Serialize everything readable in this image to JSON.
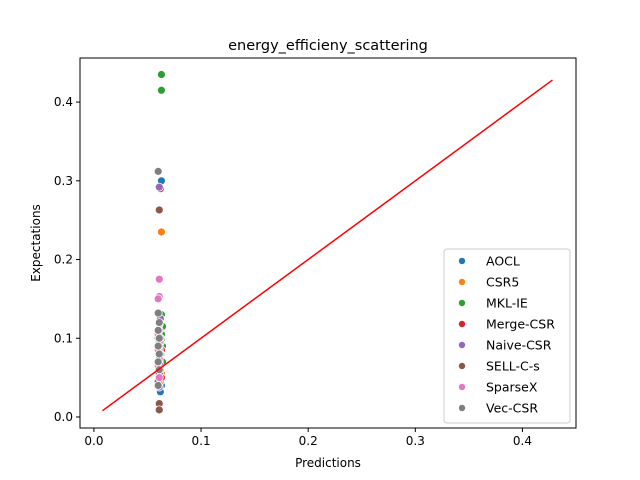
{
  "chart_data": {
    "type": "scatter",
    "title": "energy_efficieny_scattering",
    "xlabel": "Predictions",
    "ylabel": "Expectations",
    "xlim": [
      -0.013,
      0.45
    ],
    "ylim": [
      -0.014,
      0.456
    ],
    "xticks": [
      0.0,
      0.1,
      0.2,
      0.3,
      0.4
    ],
    "yticks": [
      0.0,
      0.1,
      0.2,
      0.3,
      0.4
    ],
    "xtick_labels": [
      "0.0",
      "0.1",
      "0.2",
      "0.3",
      "0.4"
    ],
    "ytick_labels": [
      "0.0",
      "0.1",
      "0.2",
      "0.3",
      "0.4"
    ],
    "grid": false,
    "legend_position": "lower-right",
    "reference_line": {
      "color": "#ff0000",
      "x": [
        0.008,
        0.428
      ],
      "y": [
        0.008,
        0.428
      ]
    },
    "series": [
      {
        "name": "AOCL",
        "color": "#1f77b4",
        "points": [
          [
            0.063,
            0.3
          ],
          [
            0.062,
            0.11
          ],
          [
            0.061,
            0.105
          ],
          [
            0.063,
            0.1
          ],
          [
            0.062,
            0.095
          ],
          [
            0.06,
            0.09
          ],
          [
            0.063,
            0.085
          ],
          [
            0.062,
            0.075
          ],
          [
            0.061,
            0.06
          ],
          [
            0.062,
            0.05
          ],
          [
            0.063,
            0.04
          ],
          [
            0.062,
            0.032
          ]
        ]
      },
      {
        "name": "CSR5",
        "color": "#ff7f0e",
        "points": [
          [
            0.063,
            0.235
          ],
          [
            0.062,
            0.1
          ],
          [
            0.061,
            0.08
          ],
          [
            0.062,
            0.065
          ],
          [
            0.063,
            0.055
          ],
          [
            0.062,
            0.045
          ]
        ]
      },
      {
        "name": "MKL-IE",
        "color": "#2ca02c",
        "points": [
          [
            0.063,
            0.435
          ],
          [
            0.063,
            0.415
          ],
          [
            0.063,
            0.13
          ],
          [
            0.064,
            0.115
          ],
          [
            0.063,
            0.105
          ],
          [
            0.063,
            0.098
          ],
          [
            0.064,
            0.09
          ],
          [
            0.063,
            0.08
          ],
          [
            0.064,
            0.07
          ]
        ]
      },
      {
        "name": "Merge-CSR",
        "color": "#d62728",
        "points": [
          [
            0.062,
            0.29
          ],
          [
            0.061,
            0.12
          ],
          [
            0.062,
            0.095
          ],
          [
            0.063,
            0.085
          ],
          [
            0.062,
            0.08
          ],
          [
            0.061,
            0.07
          ],
          [
            0.062,
            0.06
          ],
          [
            0.063,
            0.05
          ]
        ]
      },
      {
        "name": "Naive-CSR",
        "color": "#9467bd",
        "points": [
          [
            0.061,
            0.292
          ],
          [
            0.062,
            0.125
          ],
          [
            0.061,
            0.11
          ],
          [
            0.062,
            0.1
          ],
          [
            0.061,
            0.09
          ],
          [
            0.062,
            0.08
          ],
          [
            0.061,
            0.072
          ],
          [
            0.062,
            0.065
          ],
          [
            0.061,
            0.038
          ]
        ]
      },
      {
        "name": "SELL-C-s",
        "color": "#8c564b",
        "points": [
          [
            0.061,
            0.263
          ],
          [
            0.06,
            0.1
          ],
          [
            0.061,
            0.085
          ],
          [
            0.06,
            0.07
          ],
          [
            0.061,
            0.055
          ],
          [
            0.06,
            0.045
          ],
          [
            0.061,
            0.017
          ],
          [
            0.061,
            0.009
          ]
        ]
      },
      {
        "name": "SparseX",
        "color": "#e377c2",
        "points": [
          [
            0.061,
            0.175
          ],
          [
            0.061,
            0.153
          ],
          [
            0.06,
            0.15
          ],
          [
            0.061,
            0.118
          ],
          [
            0.06,
            0.105
          ],
          [
            0.061,
            0.095
          ],
          [
            0.06,
            0.085
          ],
          [
            0.061,
            0.075
          ],
          [
            0.06,
            0.065
          ],
          [
            0.061,
            0.05
          ]
        ]
      },
      {
        "name": "Vec-CSR",
        "color": "#7f7f7f",
        "points": [
          [
            0.06,
            0.312
          ],
          [
            0.06,
            0.132
          ],
          [
            0.061,
            0.12
          ],
          [
            0.06,
            0.11
          ],
          [
            0.061,
            0.1
          ],
          [
            0.06,
            0.09
          ],
          [
            0.061,
            0.08
          ],
          [
            0.06,
            0.07
          ],
          [
            0.061,
            0.06
          ],
          [
            0.06,
            0.04
          ]
        ]
      }
    ]
  }
}
